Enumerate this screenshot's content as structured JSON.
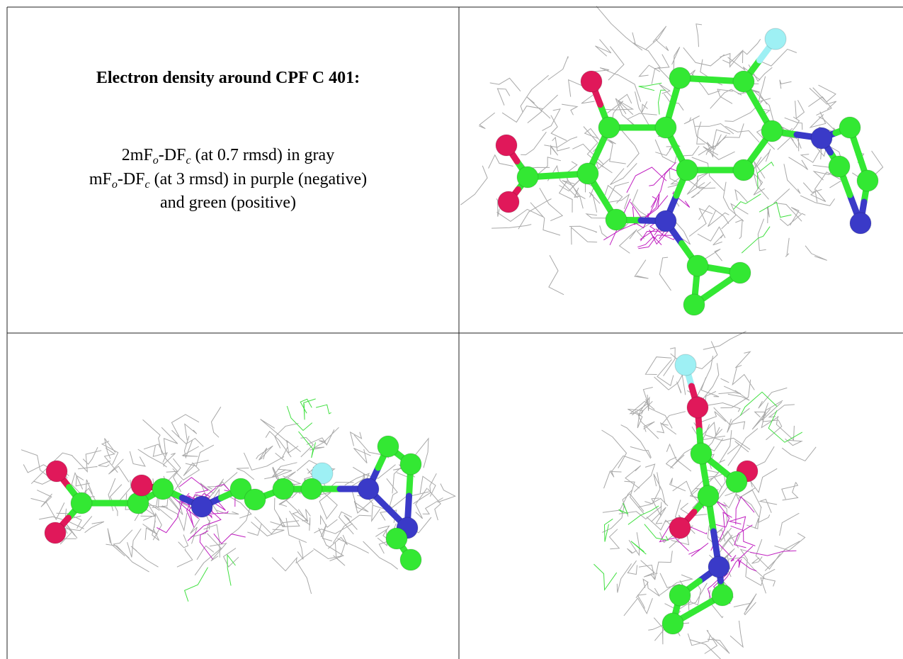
{
  "header": {
    "title": "Electron density around CPF C 401:"
  },
  "legend": {
    "lines": [
      [
        "2mF",
        "o",
        "-DF",
        "c",
        " (at 0.7 rmsd) in gray"
      ],
      [
        "mF",
        "o",
        "-DF",
        "c",
        " (at 3 rmsd) in purple (negative)"
      ],
      [
        "and green (positive)"
      ]
    ]
  }
}
